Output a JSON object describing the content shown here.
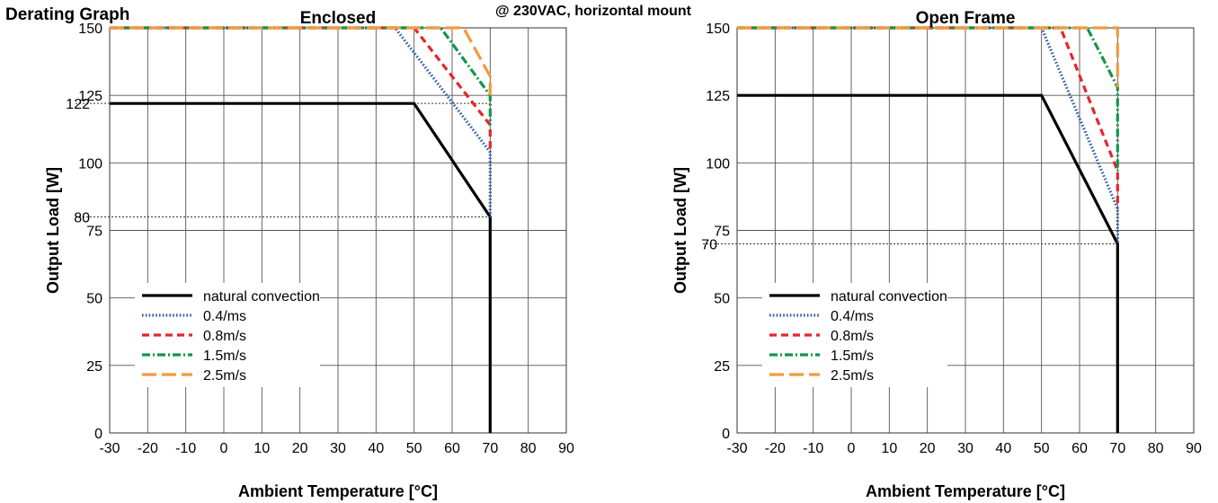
{
  "page": {
    "title": "Derating Graph",
    "condition": "@ 230VAC, horizontal mount"
  },
  "colors": {
    "natural_convection": "#000000",
    "0.4m/s": "#2b5fa8",
    "0.8m/s": "#e8252b",
    "1.5m/s": "#11964a",
    "2.5m/s": "#f39a3e",
    "grid": "#555555",
    "guide": "#333333"
  },
  "chart_data": [
    {
      "type": "line",
      "title": "Enclosed",
      "xlabel": "Ambient Temperature [°C]",
      "ylabel": "Output Load [W]",
      "xlim": [
        -30,
        90
      ],
      "ylim": [
        0,
        150
      ],
      "x_ticks": [
        -30,
        -20,
        -10,
        0,
        10,
        20,
        30,
        40,
        50,
        60,
        70,
        80,
        90
      ],
      "y_ticks": [
        0,
        25,
        50,
        75,
        100,
        125,
        150
      ],
      "grid": true,
      "legend_position": "bottom-left",
      "annotations": [
        {
          "label": "122",
          "y": 122
        },
        {
          "label": "80",
          "y": 80
        }
      ],
      "series": [
        {
          "name": "natural convection",
          "style": "solid",
          "x": [
            -30,
            50,
            70,
            70
          ],
          "y": [
            122,
            122,
            80,
            0
          ]
        },
        {
          "name": "0.4/ms",
          "style": "dotted",
          "x": [
            -30,
            45,
            70,
            70
          ],
          "y": [
            150,
            150,
            104,
            80
          ]
        },
        {
          "name": "0.8m/s",
          "style": "dashed",
          "x": [
            -30,
            50,
            70,
            70
          ],
          "y": [
            150,
            150,
            114,
            104
          ]
        },
        {
          "name": "1.5m/s",
          "style": "dashdot",
          "x": [
            -30,
            57,
            70,
            70
          ],
          "y": [
            150,
            150,
            125,
            114
          ]
        },
        {
          "name": "2.5m/s",
          "style": "longdash",
          "x": [
            -30,
            63,
            70,
            70
          ],
          "y": [
            150,
            150,
            132,
            125
          ]
        }
      ]
    },
    {
      "type": "line",
      "title": "Open Frame",
      "xlabel": "Ambient Temperature [°C]",
      "ylabel": "Output Load [W]",
      "xlim": [
        -30,
        90
      ],
      "ylim": [
        0,
        150
      ],
      "x_ticks": [
        -30,
        -20,
        -10,
        0,
        10,
        20,
        30,
        40,
        50,
        60,
        70,
        80,
        90
      ],
      "y_ticks": [
        0,
        25,
        50,
        75,
        100,
        125,
        150
      ],
      "grid": true,
      "legend_position": "bottom-left",
      "annotations": [
        {
          "label": "70",
          "y": 70
        }
      ],
      "series": [
        {
          "name": "natural convection",
          "style": "solid",
          "x": [
            -30,
            50,
            70,
            70
          ],
          "y": [
            125,
            125,
            70,
            0
          ]
        },
        {
          "name": "0.4/ms",
          "style": "dotted",
          "x": [
            -30,
            50,
            70,
            70
          ],
          "y": [
            150,
            150,
            83,
            70
          ]
        },
        {
          "name": "0.8m/s",
          "style": "dashed",
          "x": [
            -30,
            55,
            70,
            70
          ],
          "y": [
            150,
            150,
            97,
            83
          ]
        },
        {
          "name": "1.5m/s",
          "style": "dashdot",
          "x": [
            -30,
            62,
            70,
            70
          ],
          "y": [
            150,
            150,
            128,
            97
          ]
        },
        {
          "name": "2.5m/s",
          "style": "longdash",
          "x": [
            -30,
            70,
            70
          ],
          "y": [
            150,
            150,
            128
          ]
        }
      ]
    }
  ]
}
